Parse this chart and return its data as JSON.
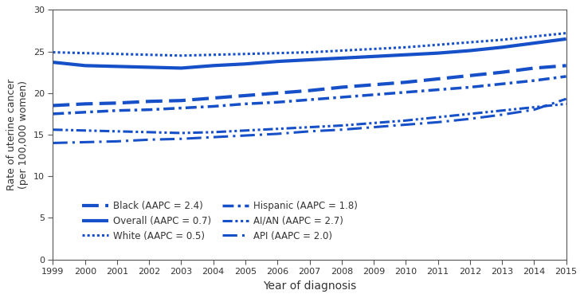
{
  "years": [
    1999,
    2000,
    2001,
    2002,
    2003,
    2004,
    2005,
    2006,
    2007,
    2008,
    2009,
    2010,
    2011,
    2012,
    2013,
    2014,
    2015
  ],
  "series": {
    "Overall": {
      "values": [
        23.7,
        23.3,
        23.2,
        23.1,
        23.0,
        23.3,
        23.5,
        23.8,
        24.0,
        24.2,
        24.4,
        24.6,
        24.8,
        25.1,
        25.5,
        26.0,
        26.5
      ],
      "linestyle": "solid",
      "linewidth": 3.0,
      "label": "Overall (AAPC = 0.7)"
    },
    "White": {
      "values": [
        24.9,
        24.8,
        24.7,
        24.6,
        24.5,
        24.6,
        24.7,
        24.8,
        24.9,
        25.1,
        25.3,
        25.5,
        25.8,
        26.1,
        26.4,
        26.8,
        27.2
      ],
      "linestyle": "densely_dotted",
      "linewidth": 2.2,
      "label": "White (AAPC = 0.5)"
    },
    "Black": {
      "values": [
        18.5,
        18.7,
        18.8,
        19.0,
        19.1,
        19.4,
        19.7,
        20.0,
        20.3,
        20.7,
        21.0,
        21.3,
        21.7,
        22.1,
        22.5,
        23.0,
        23.3
      ],
      "linestyle": "dashed",
      "linewidth": 3.0,
      "label": "Black (AAPC = 2.4)"
    },
    "Hispanic": {
      "values": [
        17.5,
        17.7,
        17.9,
        18.0,
        18.2,
        18.4,
        18.7,
        18.9,
        19.2,
        19.5,
        19.8,
        20.1,
        20.4,
        20.7,
        21.1,
        21.5,
        22.0
      ],
      "linestyle": "dashdot",
      "linewidth": 2.5,
      "label": "Hispanic (AAPC = 1.8)"
    },
    "AIAN": {
      "values": [
        15.6,
        15.5,
        15.4,
        15.3,
        15.2,
        15.3,
        15.5,
        15.7,
        15.9,
        16.1,
        16.4,
        16.7,
        17.1,
        17.5,
        17.9,
        18.3,
        18.7
      ],
      "linestyle": "dashdotdot",
      "linewidth": 2.2,
      "label": "AI/AN (AAPC = 2.7)"
    },
    "API": {
      "values": [
        14.0,
        14.1,
        14.2,
        14.4,
        14.5,
        14.7,
        14.9,
        15.1,
        15.4,
        15.6,
        15.9,
        16.2,
        16.5,
        16.9,
        17.4,
        18.0,
        19.3
      ],
      "linestyle": "loosely_dashdot",
      "linewidth": 2.2,
      "label": "API (AAPC = 2.0)"
    }
  },
  "color": "#1650c8",
  "ylabel": "Rate of uterine cancer\n(per 100,000 women)",
  "xlabel": "Year of diagnosis",
  "ylim": [
    0,
    30
  ],
  "yticks": [
    0,
    5,
    10,
    15,
    20,
    25,
    30
  ],
  "xtick_labels": [
    "1999",
    "2000",
    "2001",
    "2002",
    "2003",
    "2004",
    "2005",
    "2006",
    "2007",
    "2008",
    "2009",
    "2010",
    "2011",
    "2012",
    "2013",
    "2014",
    "2015"
  ]
}
